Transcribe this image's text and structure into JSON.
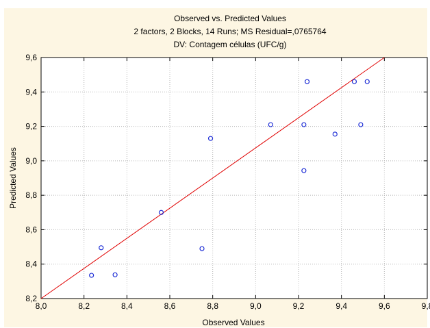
{
  "chart_data": {
    "type": "scatter",
    "title_lines": [
      "Observed vs. Predicted Values",
      "2 factors, 2 Blocks, 14 Runs; MS Residual=,0765764",
      "DV: Contagem células (UFC/g)"
    ],
    "xlabel": "Observed Values",
    "ylabel": "Predicted Values",
    "xlim": [
      8.0,
      9.8
    ],
    "ylim": [
      8.2,
      9.6
    ],
    "x_ticks": [
      "8,0",
      "8,2",
      "8,4",
      "8,6",
      "8,8",
      "9,0",
      "9,2",
      "9,4",
      "9,6",
      "9,8"
    ],
    "y_ticks": [
      "8,2",
      "8,4",
      "8,6",
      "8,8",
      "9,0",
      "9,2",
      "9,4",
      "9,6"
    ],
    "grid": true,
    "points": [
      {
        "x": 8.235,
        "y": 8.335
      },
      {
        "x": 8.28,
        "y": 8.495
      },
      {
        "x": 8.345,
        "y": 8.338
      },
      {
        "x": 8.56,
        "y": 8.7
      },
      {
        "x": 8.75,
        "y": 8.49
      },
      {
        "x": 8.79,
        "y": 9.13
      },
      {
        "x": 9.07,
        "y": 9.21
      },
      {
        "x": 9.225,
        "y": 8.943
      },
      {
        "x": 9.225,
        "y": 9.21
      },
      {
        "x": 9.24,
        "y": 9.46
      },
      {
        "x": 9.37,
        "y": 9.155
      },
      {
        "x": 9.46,
        "y": 9.46
      },
      {
        "x": 9.49,
        "y": 9.21
      },
      {
        "x": 9.52,
        "y": 9.46
      }
    ],
    "fit_line": {
      "x1": 8.0,
      "y1": 8.2,
      "x2": 9.6,
      "y2": 9.6
    },
    "colors": {
      "background": "#fdf6e3",
      "plot_area": "#ffffff",
      "points": "#1f2fd6",
      "line": "#e00000",
      "grid": "#b8b8b8"
    }
  }
}
